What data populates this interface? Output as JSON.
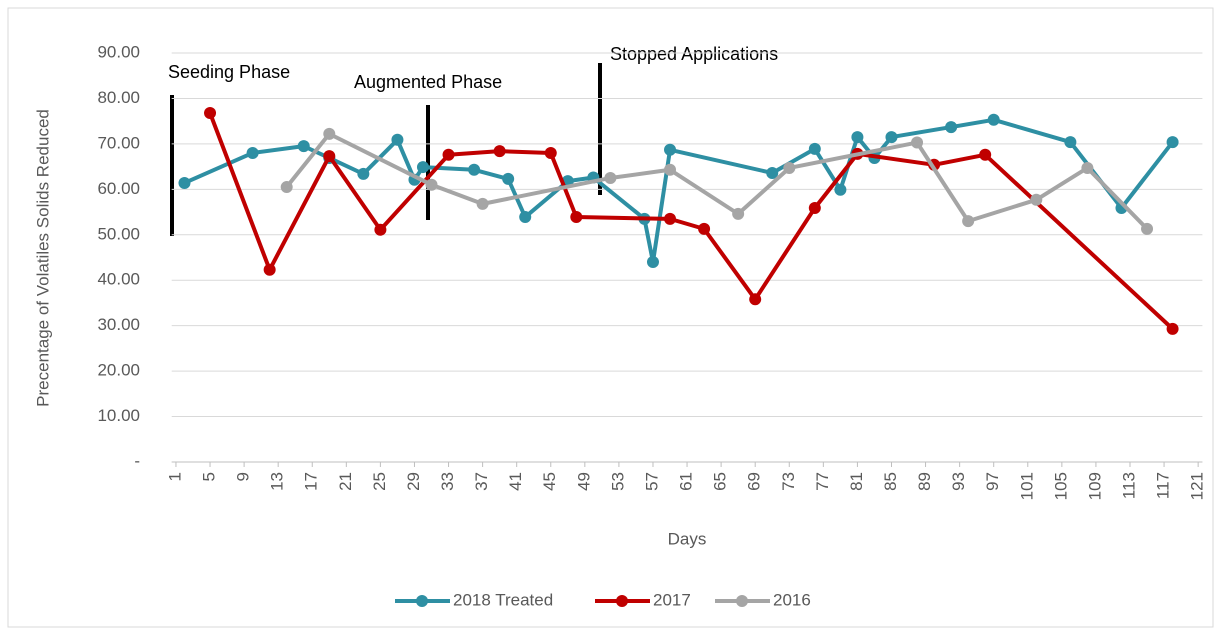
{
  "chart_data": {
    "type": "line",
    "x_label": "Days",
    "y_label": "Precentage of Volatiles Solids Reduced",
    "xlim": [
      0.5,
      121.5
    ],
    "xticks": [
      1,
      5,
      9,
      13,
      17,
      21,
      25,
      29,
      33,
      37,
      41,
      45,
      49,
      53,
      57,
      61,
      65,
      69,
      73,
      77,
      81,
      85,
      89,
      93,
      97,
      101,
      105,
      109,
      113,
      117,
      121
    ],
    "ylim": [
      0,
      90
    ],
    "yticks": [
      {
        "value": 0,
        "label": "-"
      },
      {
        "value": 10,
        "label": "10.00"
      },
      {
        "value": 20,
        "label": "20.00"
      },
      {
        "value": 30,
        "label": "30.00"
      },
      {
        "value": 40,
        "label": "40.00"
      },
      {
        "value": 50,
        "label": "50.00"
      },
      {
        "value": 60,
        "label": "60.00"
      },
      {
        "value": 70,
        "label": "70.00"
      },
      {
        "value": 80,
        "label": "80.00"
      },
      {
        "value": 90,
        "label": "90.00"
      }
    ],
    "grid": true,
    "legend": "bottom",
    "annotations": [
      "Seeding Phase",
      "Augmented Phase",
      "Stopped Applications"
    ],
    "series": [
      {
        "name": "2018 Treated",
        "color": "#2e8fa3",
        "x": [
          2,
          10,
          16,
          19,
          23,
          27,
          29,
          30,
          36,
          40,
          42,
          47,
          50,
          56,
          57,
          59,
          71,
          76,
          79,
          81,
          83,
          85,
          92,
          97,
          106,
          112,
          118
        ],
        "values": [
          61.4,
          68.0,
          69.5,
          66.9,
          63.4,
          70.9,
          62.1,
          64.9,
          64.3,
          62.3,
          53.9,
          61.8,
          62.6,
          53.5,
          44.0,
          68.7,
          63.6,
          68.9,
          59.9,
          71.5,
          66.9,
          71.5,
          73.7,
          75.3,
          70.4,
          55.9,
          70.4
        ]
      },
      {
        "name": "2017",
        "color": "#c00000",
        "x": [
          5,
          12,
          19,
          25,
          33,
          39,
          45,
          48,
          59,
          63,
          69,
          76,
          81,
          90,
          96,
          118
        ],
        "values": [
          76.8,
          42.3,
          67.3,
          51.1,
          67.6,
          68.4,
          68.0,
          53.9,
          53.5,
          51.3,
          35.8,
          55.9,
          67.8,
          65.4,
          67.6,
          29.3
        ]
      },
      {
        "name": "2016",
        "color": "#a5a5a5",
        "x": [
          14,
          19,
          31,
          37,
          52,
          59,
          67,
          73,
          88,
          94,
          102,
          108,
          115
        ],
        "values": [
          60.5,
          72.2,
          61.0,
          56.8,
          62.5,
          64.3,
          54.6,
          64.7,
          70.3,
          53.0,
          57.7,
          64.7,
          51.3
        ]
      }
    ]
  }
}
